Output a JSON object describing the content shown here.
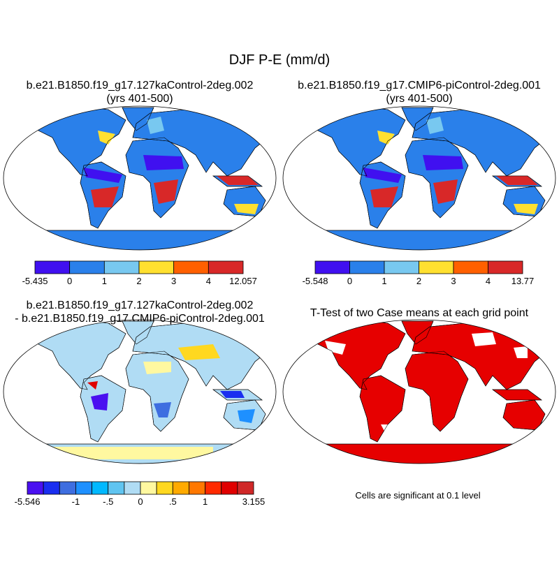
{
  "title": "DJF P-E (mm/d)",
  "panels": [
    {
      "id": "case1",
      "title_line1": "b.e21.B1850.f19_g17.127kaControl-2deg.002",
      "title_line2": "(yrs 401-500)",
      "land_color": "#2a80ea",
      "colorbar": {
        "colors": [
          "#4010f0",
          "#2a80ea",
          "#78c8f0",
          "#ffe030",
          "#ff6000",
          "#d82828"
        ],
        "levels": [
          "-5.435",
          "0",
          "1",
          "2",
          "3",
          "4",
          "12.057"
        ]
      }
    },
    {
      "id": "case2",
      "title_line1": "b.e21.B1850.f19_g17.CMIP6-piControl-2deg.001",
      "title_line2": "(yrs 401-500)",
      "land_color": "#2a80ea",
      "colorbar": {
        "colors": [
          "#4010f0",
          "#2a80ea",
          "#78c8f0",
          "#ffe030",
          "#ff6000",
          "#d82828"
        ],
        "levels": [
          "-5.548",
          "0",
          "1",
          "2",
          "3",
          "4",
          "13.77"
        ]
      }
    },
    {
      "id": "difference",
      "title_line1": "b.e21.B1850.f19_g17.127kaControl-2deg.002",
      "title_line2": "- b.e21.B1850.f19_g17.CMIP6-piControl-2deg.001",
      "land_color": "#b0dcf4",
      "colorbar": {
        "colors": [
          "#4a10f0",
          "#1a2ef0",
          "#3e6ee0",
          "#1e90ff",
          "#00b8ff",
          "#60c4f0",
          "#b0dcf4",
          "#fff8a0",
          "#ffd820",
          "#ffaa00",
          "#ff7800",
          "#ff2a00",
          "#e00000",
          "#d02828"
        ],
        "levels": [
          "-5.546",
          "",
          "",
          "-1",
          "",
          "-.5",
          "",
          "0",
          "",
          ".5",
          "",
          "1",
          "",
          "",
          "3.155"
        ]
      }
    },
    {
      "id": "ttest",
      "title_line1": "T-Test of two Case means at each grid point",
      "land_color": "#e60000",
      "note": "Cells are significant at 0.1 level"
    }
  ]
}
